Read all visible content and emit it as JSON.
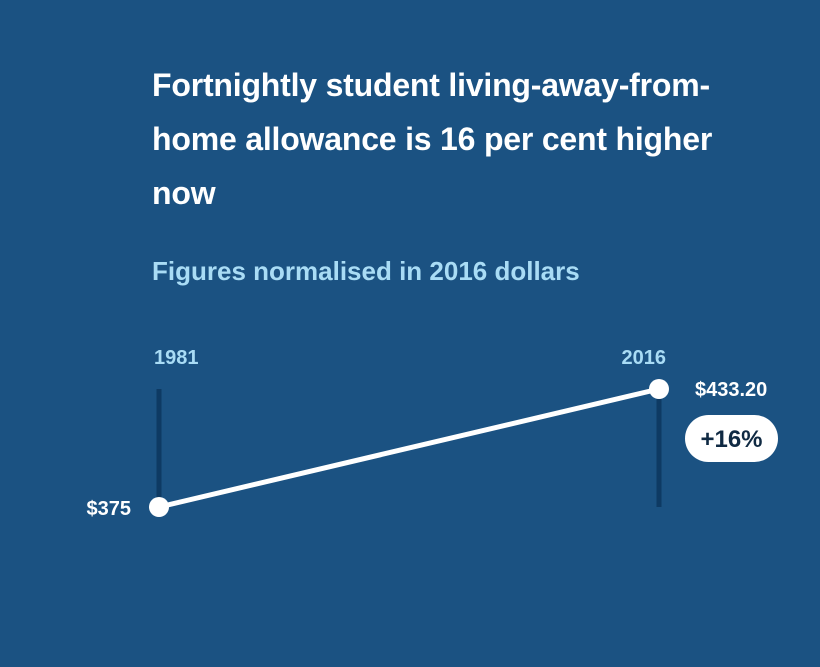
{
  "header": {
    "title": "Fortnightly student living-away-from-home allowance is 16 per cent higher now",
    "subtitle": "Figures normalised in 2016 dollars"
  },
  "colors": {
    "background": "#1b5282",
    "line": "#ffffff",
    "tick_line": "#0e3a63",
    "tick_label": "#a9dcf5",
    "badge_bg": "#ffffff",
    "badge_text": "#102a43"
  },
  "chart_data": {
    "type": "line",
    "title": "Fortnightly student living-away-from-home allowance is 16 per cent higher now",
    "subtitle": "Figures normalised in 2016 dollars",
    "x": [
      "1981",
      "2016"
    ],
    "series": [
      {
        "values": [
          375,
          433.2
        ],
        "labels": [
          "$375",
          "$433.20"
        ]
      }
    ],
    "ylim": [
      375,
      433.2
    ],
    "grid": false,
    "legend": "none",
    "annotations": [
      {
        "x": "2016",
        "text": "+16%"
      }
    ]
  }
}
